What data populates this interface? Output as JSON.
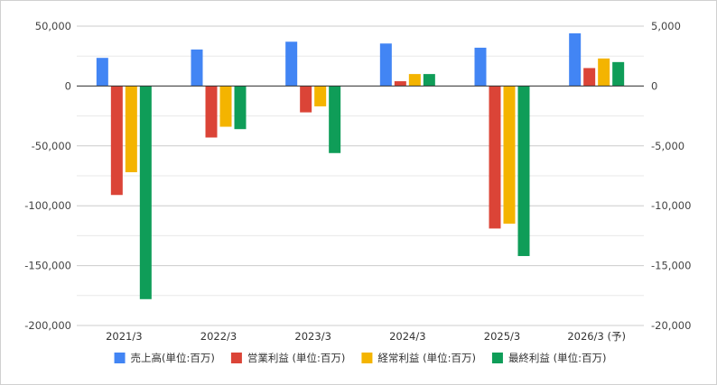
{
  "chart_data": {
    "type": "bar",
    "categories": [
      "2021/3",
      "2022/3",
      "2023/3",
      "2024/3",
      "2025/3",
      "2026/3 (予)"
    ],
    "series": [
      {
        "name": "売上高(単位:百万)",
        "axis": "left",
        "color": "#4285f4",
        "values": [
          23500,
          30500,
          37000,
          35500,
          32000,
          44000
        ]
      },
      {
        "name": "営業利益 (単位:百万)",
        "axis": "right",
        "color": "#db4437",
        "values": [
          -9100,
          -4300,
          -2200,
          400,
          -11900,
          1500
        ]
      },
      {
        "name": "経常利益 (単位:百万)",
        "axis": "right",
        "color": "#f4b400",
        "values": [
          -7200,
          -3400,
          -1700,
          1000,
          -11500,
          2300
        ]
      },
      {
        "name": "最終利益 (単位:百万)",
        "axis": "right",
        "color": "#0f9d58",
        "values": [
          -17800,
          -3600,
          -5600,
          1000,
          -14200,
          2000
        ]
      }
    ],
    "y_left": {
      "min": -200000,
      "max": 50000,
      "ticks": [
        50000,
        0,
        -50000,
        -100000,
        -150000,
        -200000
      ],
      "tick_labels": [
        "50,000",
        "0",
        "-50,000",
        "-100,000",
        "-150,000",
        "-200,000"
      ]
    },
    "y_right": {
      "min": -20000,
      "max": 5000,
      "ticks": [
        5000,
        0,
        -5000,
        -10000,
        -15000,
        -20000
      ],
      "tick_labels": [
        "5,000",
        "0",
        "-5,000",
        "-10,000",
        "-15,000",
        "-20,000"
      ]
    },
    "grid": true,
    "legend_position": "bottom"
  }
}
